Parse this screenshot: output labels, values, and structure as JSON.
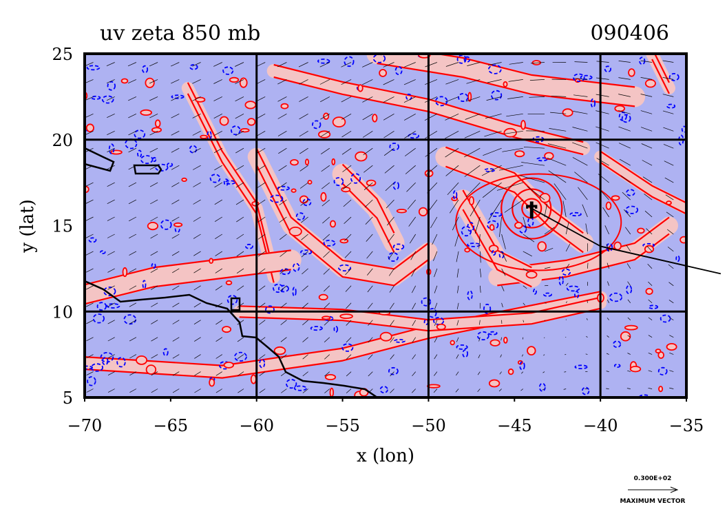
{
  "chart_data": {
    "type": "vector-contour-map",
    "title": "uv zeta 850 mb",
    "date_label": "090406",
    "xlabel": "x (lon)",
    "ylabel": "y (lat)",
    "xlim": [
      -70,
      -35
    ],
    "ylim": [
      5,
      25
    ],
    "x_ticks": [
      -70,
      -65,
      -60,
      -55,
      -50,
      -45,
      -40,
      -35
    ],
    "y_ticks": [
      5,
      10,
      15,
      20,
      25
    ],
    "grid_lines_x": [
      -60,
      -50,
      -40
    ],
    "grid_lines_y": [
      10,
      20
    ],
    "positive_vorticity_color": "#f4c4c4",
    "negative_vorticity_color": "#aeb2f2",
    "positive_contour_color": "#ff0000",
    "negative_contour_color": "#0000ff",
    "storm_center": {
      "lon": -44,
      "lat": 16
    },
    "storm_track": [
      [
        -44,
        16
      ],
      [
        -40,
        13.8
      ],
      [
        -33,
        12.2
      ]
    ],
    "reference_vector": {
      "value_label": "0.300E+02",
      "caption": "MAXIMUM VECTOR"
    }
  }
}
